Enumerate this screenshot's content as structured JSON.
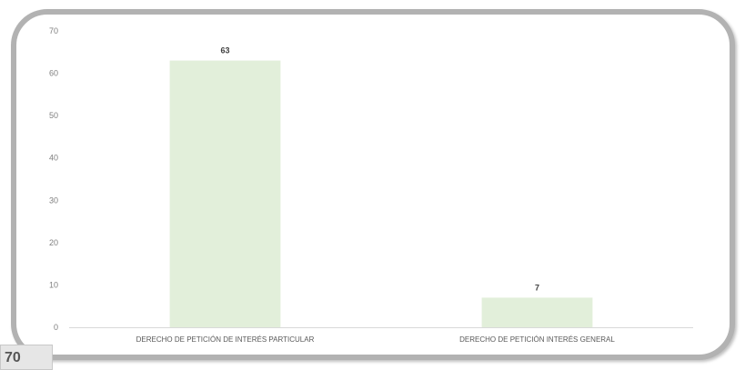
{
  "page_number": "70",
  "colors": {
    "bar": "#e2efda",
    "frame": "#b2b2b2",
    "axis": "#d9d9d9"
  },
  "chart_data": {
    "type": "bar",
    "title": "",
    "xlabel": "",
    "ylabel": "",
    "categories": [
      "DERECHO DE PETICIÓN DE INTERÉS PARTICULAR",
      "DERECHO DE PETICIÓN INTERÉS GENERAL"
    ],
    "values": [
      63,
      7
    ],
    "data_labels": [
      "63",
      "7"
    ],
    "ylim": [
      0,
      70
    ],
    "yticks": [
      0,
      10,
      20,
      30,
      40,
      50,
      60,
      70
    ],
    "grid": false,
    "legend": "none"
  }
}
